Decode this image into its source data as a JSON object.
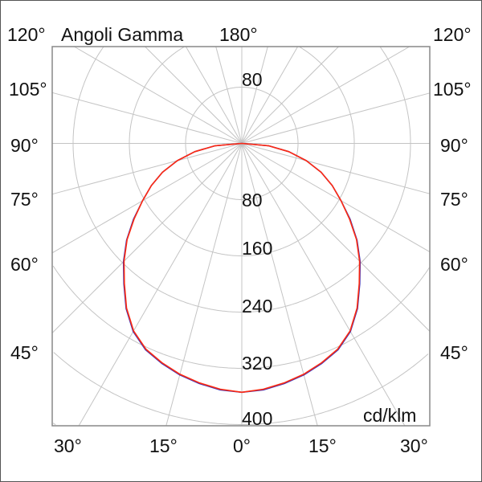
{
  "chart_data": {
    "type": "polar-line",
    "title": "Angoli Gamma",
    "unit_label": "cd/klm",
    "radial_ticks": [
      "80",
      "160",
      "240",
      "320",
      "400"
    ],
    "radial_top_tick": "80",
    "radial_range": [
      0,
      400
    ],
    "angle_step_deg": 15,
    "angle_labels": {
      "top_left": "120°",
      "top_center": "180°",
      "top_right": "120°",
      "left": [
        "105°",
        "90°",
        "75°",
        "60°",
        "45°"
      ],
      "right": [
        "105°",
        "90°",
        "75°",
        "60°",
        "45°"
      ],
      "bottom": [
        "30°",
        "15°",
        "0°",
        "15°",
        "30°"
      ]
    },
    "grid": true,
    "gamma_deg": [
      0,
      5,
      10,
      15,
      20,
      25,
      30,
      35,
      40,
      45,
      50,
      55,
      60,
      65,
      70,
      75,
      80,
      85,
      90
    ],
    "series": [
      {
        "color": "#3a2fb8",
        "values": [
          354,
          352,
          347,
          341,
          333,
          324,
          309,
          287,
          261,
          238,
          214,
          188,
          163,
          142,
          120,
          95,
          68,
          38,
          0
        ]
      },
      {
        "color": "#ff2a10",
        "values": [
          354,
          351,
          346,
          340,
          332,
          323,
          308,
          286,
          260,
          237,
          213,
          187,
          163,
          142,
          120,
          95,
          68,
          38,
          0
        ]
      }
    ]
  }
}
